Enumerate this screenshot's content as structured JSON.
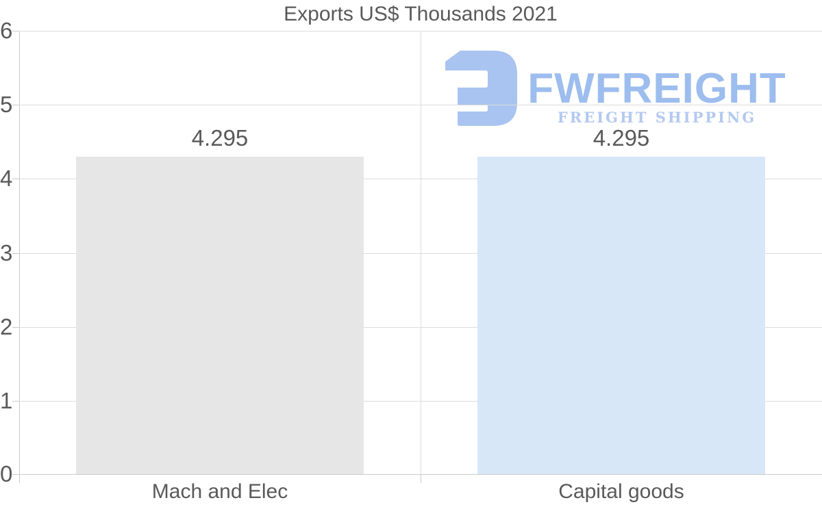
{
  "chart_data": {
    "type": "bar",
    "title": "Exports US$ Thousands 2021",
    "categories": [
      "Mach and Elec",
      "Capital goods"
    ],
    "values": [
      4.295,
      4.295
    ],
    "value_labels": [
      "4.295",
      "4.295"
    ],
    "bar_colors": [
      "#e6e6e6",
      "#d7e7f8"
    ],
    "ylim": [
      0,
      6
    ],
    "yticks": [
      0,
      1,
      2,
      3,
      4,
      5,
      6
    ],
    "grid": true,
    "legend": false,
    "xlabel": "",
    "ylabel": ""
  },
  "logo": {
    "name": "FWFREIGHT",
    "tagline": "FREIGHT SHIPPING",
    "mark_color": "#a9c4f0",
    "name_color": "#9cbdee",
    "tagline_color": "#b3c9f1"
  },
  "colors": {
    "background": "#ffffff",
    "text": "#595959",
    "gridline": "#dcdcdc",
    "axis": "#c9c9c9"
  }
}
